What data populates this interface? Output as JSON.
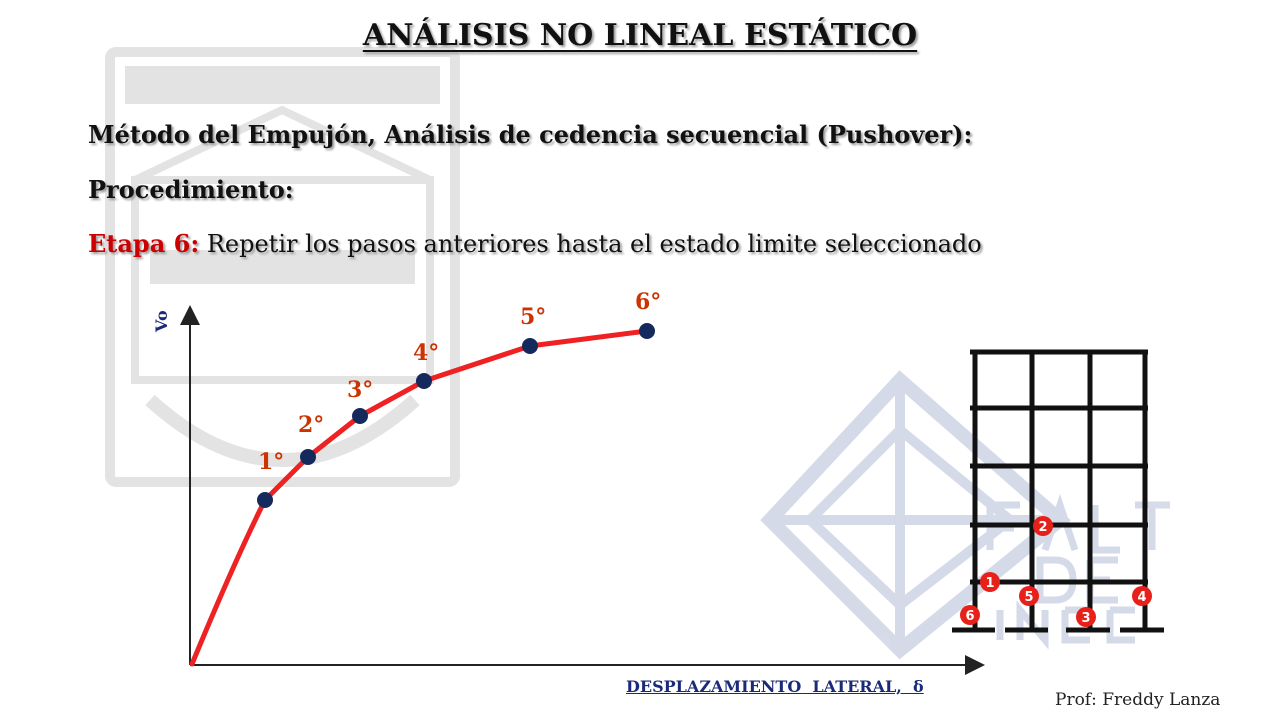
{
  "title": "ANÁLISIS NO LINEAL ESTÁTICO",
  "method": "Método del Empujón, Análisis de cedencia secuencial (Pushover):",
  "procedure": "Procedimiento:",
  "step_label": "Etapa 6:",
  "step_text": "Repetir los pasos anteriores hasta el estado limite seleccionado",
  "diagram": {
    "y_axis_label": "Vo",
    "x_axis_label": "DESPLAZAMIENTO  LATERAL,  δ",
    "steps": [
      "1°",
      "2°",
      "3°",
      "4°",
      "5°",
      "6°"
    ],
    "hinges": [
      "1",
      "2",
      "3",
      "4",
      "5",
      "6"
    ]
  },
  "author": "Prof: Freddy Lanza",
  "colors": {
    "curve": "#ee2222",
    "points": "#152a5c",
    "hinge": "#e8201a",
    "step_label": "#cc3300",
    "frame": "#111111"
  }
}
